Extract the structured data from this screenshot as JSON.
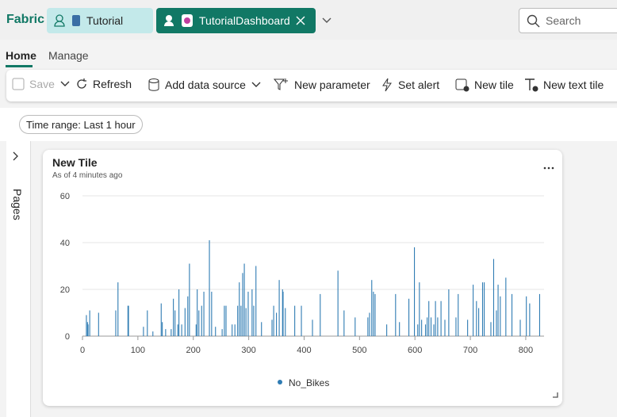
{
  "app": {
    "brand": "Fabric",
    "tabs": [
      "Tutorial",
      "TutorialDashboard"
    ],
    "search": "Search"
  },
  "ribbon": {
    "tabs": [
      "Home",
      "Manage"
    ],
    "buttons": [
      "Save",
      "Refresh",
      "Add data source",
      "New parameter",
      "Set alert",
      "New tile",
      "New text tile"
    ]
  },
  "time_range": "Time range: Last 1 hour",
  "pages": "Pages",
  "tile": {
    "subtitle": "As of 4 minutes ago"
  },
  "chart_data": {
    "type": "bar",
    "title": "New Tile",
    "x": [
      7,
      9,
      10,
      13,
      29,
      60,
      64,
      82,
      83,
      110,
      117,
      127,
      142,
      144,
      150,
      160,
      164,
      167,
      172,
      174,
      179,
      185,
      190,
      193,
      205,
      207,
      210,
      215,
      219,
      229,
      233,
      240,
      252,
      256,
      259,
      270,
      275,
      280,
      283,
      286,
      289,
      292,
      295,
      299,
      306,
      309,
      313,
      323,
      342,
      345,
      350,
      355,
      361,
      362,
      366,
      383,
      395,
      415,
      429,
      461,
      472,
      492,
      515,
      518,
      522,
      525,
      528,
      549,
      565,
      572,
      589,
      599,
      605,
      608,
      612,
      619,
      622,
      625,
      629,
      634,
      637,
      641,
      647,
      654,
      661,
      674,
      678,
      695,
      705,
      711,
      715,
      722,
      725,
      737,
      742,
      747,
      750,
      754,
      764,
      775,
      790,
      801,
      807,
      825
    ],
    "series": [
      {
        "name": "No_Bikes",
        "color": "#2f7cb3",
        "values": [
          9,
          6,
          5,
          11,
          10,
          11,
          23,
          13,
          13,
          4,
          11,
          2,
          14,
          6,
          3,
          3,
          16,
          11,
          5,
          20,
          5,
          12,
          17,
          31,
          5,
          20,
          11,
          13,
          19,
          41,
          19,
          4,
          3,
          13,
          13,
          5,
          5,
          13,
          23,
          13,
          27,
          31,
          12,
          19,
          20,
          13,
          30,
          6,
          7,
          13,
          10,
          24,
          20,
          19,
          12,
          13,
          13,
          7,
          18,
          28,
          11,
          8,
          8,
          10,
          24,
          19,
          18,
          5,
          18,
          6,
          16,
          38,
          5,
          23,
          7,
          5,
          8,
          15,
          8,
          5,
          15,
          8,
          15,
          7,
          20,
          8,
          18,
          7,
          22,
          15,
          12,
          23,
          23,
          6,
          33,
          11,
          22,
          17,
          25,
          18,
          7,
          17,
          14,
          18
        ]
      }
    ],
    "xlim": [
      0,
      833
    ],
    "xticks": [
      0,
      100,
      200,
      300,
      400,
      500,
      600,
      700,
      800
    ],
    "ylim": [
      0,
      60
    ],
    "yticks": [
      0,
      20,
      40,
      60
    ],
    "grid": true
  }
}
